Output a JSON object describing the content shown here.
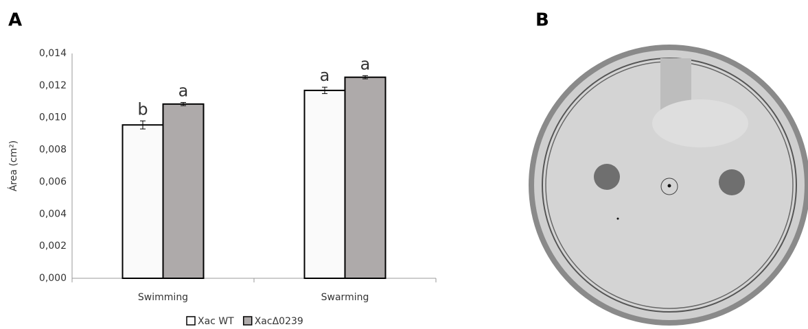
{
  "panel_labels": [
    "A",
    "B"
  ],
  "chart_data": {
    "type": "bar",
    "y_label": "Área (cm²)",
    "categories": [
      "Swimming",
      "Swarming"
    ],
    "series": [
      {
        "name": "Xac WT",
        "color": "#fafafa",
        "values": [
          0.00955,
          0.0117
        ],
        "errors": [
          0.00025,
          0.0002
        ],
        "letters": [
          "b",
          "a"
        ]
      },
      {
        "name": "XacΔ0239",
        "color": "#aeaaaa",
        "values": [
          0.01085,
          0.01252
        ],
        "errors": [
          0.0001,
          0.0001
        ],
        "letters": [
          "a",
          "a"
        ]
      }
    ],
    "ylim": [
      0,
      0.014
    ],
    "yticks": [
      {
        "value": 0,
        "label": "0,000"
      },
      {
        "value": 0.002,
        "label": "0,002"
      },
      {
        "value": 0.004,
        "label": "0,004"
      },
      {
        "value": 0.006,
        "label": "0,006"
      },
      {
        "value": 0.008,
        "label": "0,008"
      },
      {
        "value": 0.01,
        "label": "0,010"
      },
      {
        "value": 0.012,
        "label": "0,012"
      },
      {
        "value": 0.014,
        "label": "0,014"
      }
    ],
    "legend": "bottom"
  }
}
